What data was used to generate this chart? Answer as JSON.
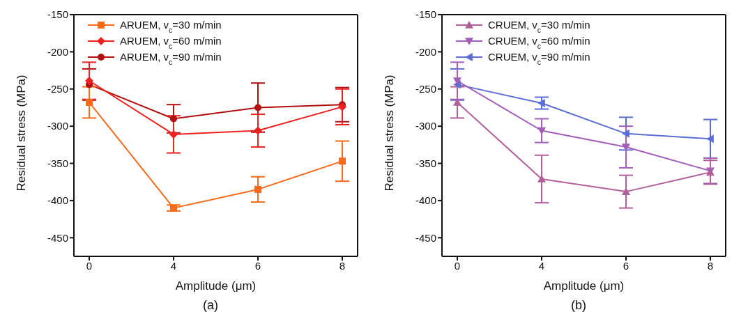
{
  "chart_data": [
    {
      "type": "line",
      "xlabel": "Amplitude (μm)",
      "ylabel": "Residual stress (MPa)",
      "annotations": [
        "(a)"
      ],
      "categories": [
        "0",
        "4",
        "6",
        "8"
      ],
      "ylim": [
        -475,
        -150
      ],
      "yticks": [
        -150,
        -200,
        -250,
        -300,
        -350,
        -400,
        -450
      ],
      "legend": "top left",
      "grid": false,
      "series": [
        {
          "name": "ARUEM, v$_{c}$=30 m/min",
          "color": "#f96b1a",
          "marker": "square",
          "values": [
            -268,
            -410,
            -385,
            -347
          ],
          "errors": [
            21,
            4,
            17,
            27
          ]
        },
        {
          "name": "ARUEM, v$_{c}$=60 m/min",
          "color": "#ef2020",
          "marker": "diamond",
          "values": [
            -239,
            -311,
            -306,
            -274
          ],
          "errors": [
            25,
            25,
            22,
            24
          ]
        },
        {
          "name": "ARUEM, v$_{c}$=90 m/min",
          "color": "#b20f0f",
          "marker": "circle",
          "values": [
            -244,
            -290,
            -275,
            -271
          ],
          "errors": [
            21,
            19,
            33,
            23
          ]
        }
      ]
    },
    {
      "type": "line",
      "xlabel": "Amplitude (μm)",
      "ylabel": "Residual stress (MPa)",
      "annotations": [
        "(b)"
      ],
      "categories": [
        "0",
        "4",
        "6",
        "8"
      ],
      "ylim": [
        -475,
        -150
      ],
      "yticks": [
        -150,
        -200,
        -250,
        -300,
        -350,
        -400,
        -450
      ],
      "legend": "top left",
      "grid": false,
      "series": [
        {
          "name": "CRUEM, v$_{c}$=30 m/min",
          "color": "#b0619a",
          "marker": "triangle",
          "values": [
            -268,
            -371,
            -388,
            -362
          ],
          "errors": [
            21,
            32,
            22,
            16
          ]
        },
        {
          "name": "CRUEM, v$_{c}$=60 m/min",
          "color": "#a25fb8",
          "marker": "triangle-down",
          "values": [
            -239,
            -306,
            -328,
            -360
          ],
          "errors": [
            25,
            16,
            28,
            17
          ]
        },
        {
          "name": "CRUEM, v$_{c}$=90 m/min",
          "color": "#5b6dd6",
          "marker": "triangle-left",
          "values": [
            -244,
            -269,
            -310,
            -317
          ],
          "errors": [
            21,
            8,
            22,
            26
          ]
        }
      ]
    }
  ]
}
